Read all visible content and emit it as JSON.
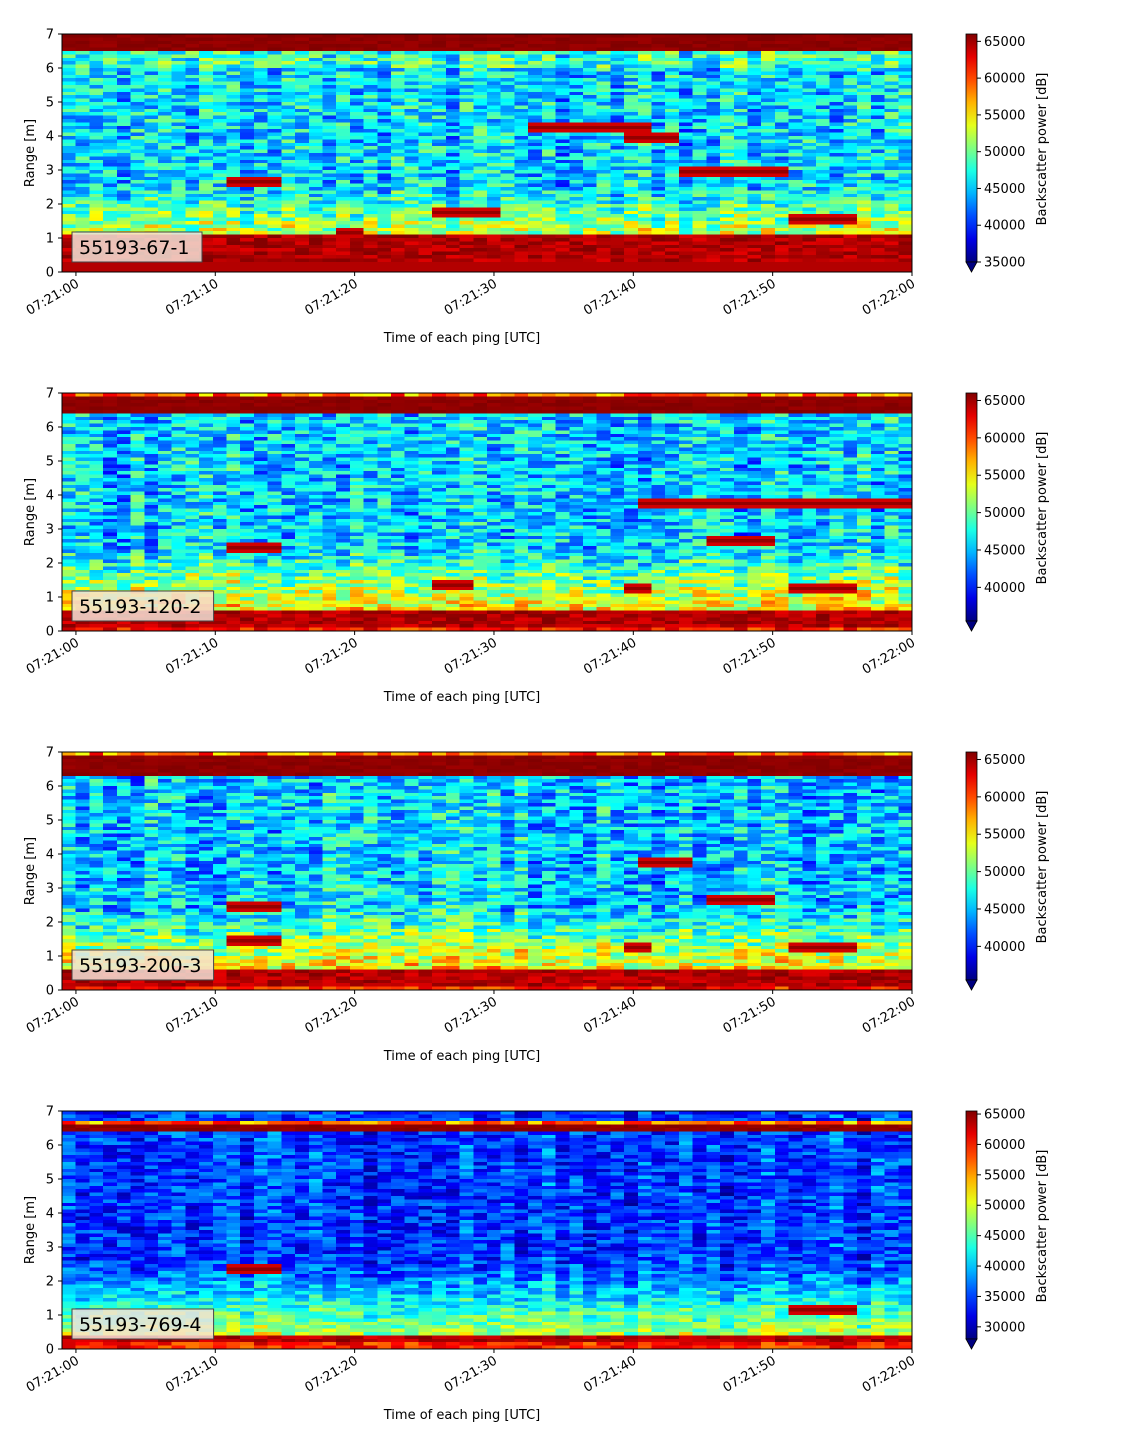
{
  "chart_data": [
    {
      "type": "heatmap",
      "panel_label": "55193-67-1",
      "xlabel": "Time of each ping [UTC]",
      "ylabel": "Range [m]",
      "x_ticks": [
        "07:21:00",
        "07:21:10",
        "07:21:20",
        "07:21:30",
        "07:21:40",
        "07:21:50",
        "07:22:00"
      ],
      "x_range": [
        "07:20:59",
        "07:22:00"
      ],
      "y_ticks": [
        0,
        1,
        2,
        3,
        4,
        5,
        6,
        7
      ],
      "ylim": [
        0,
        7
      ],
      "colorbar": {
        "label": "Backscatter power [dB]",
        "ticks": [
          35000,
          40000,
          45000,
          50000,
          55000,
          60000,
          65000
        ],
        "range": [
          35000,
          66000
        ],
        "extend": "min",
        "colormap": "jet"
      },
      "surface_band_m": [
        6.5,
        7.0
      ],
      "bottom_band_m": [
        0.3,
        1.1
      ],
      "features": [
        {
          "t_sec": [
            11,
            13
          ],
          "range_m": 2.7
        },
        {
          "t_sec": [
            19,
            19
          ],
          "range_m": 1.2
        },
        {
          "t_sec": [
            26,
            29
          ],
          "range_m": 1.8
        },
        {
          "t_sec": [
            33,
            40
          ],
          "range_m": 4.3
        },
        {
          "t_sec": [
            40,
            42
          ],
          "range_m": 4.0
        },
        {
          "t_sec": [
            44,
            50
          ],
          "range_m": 3.0
        },
        {
          "t_sec": [
            52,
            55
          ],
          "range_m": 1.6
        }
      ]
    },
    {
      "type": "heatmap",
      "panel_label": "55193-120-2",
      "xlabel": "Time of each ping [UTC]",
      "ylabel": "Range [m]",
      "x_ticks": [
        "07:21:00",
        "07:21:10",
        "07:21:20",
        "07:21:30",
        "07:21:40",
        "07:21:50",
        "07:22:00"
      ],
      "x_range": [
        "07:20:59",
        "07:22:00"
      ],
      "y_ticks": [
        0,
        1,
        2,
        3,
        4,
        5,
        6,
        7
      ],
      "ylim": [
        0,
        7
      ],
      "colorbar": {
        "label": "Backscatter power [dB]",
        "ticks": [
          40000,
          45000,
          50000,
          55000,
          60000,
          65000
        ],
        "range": [
          35500,
          66000
        ],
        "extend": "min",
        "colormap": "jet"
      },
      "surface_band_m": [
        6.4,
        7.0
      ],
      "bottom_band_m": [
        0.1,
        0.6
      ],
      "features": [
        {
          "t_sec": [
            11,
            13
          ],
          "range_m": 2.5
        },
        {
          "t_sec": [
            26,
            27
          ],
          "range_m": 1.4
        },
        {
          "t_sec": [
            40,
            40
          ],
          "range_m": 1.3
        },
        {
          "t_sec": [
            41,
            43
          ],
          "range_m": 3.8
        },
        {
          "t_sec": [
            43,
            59
          ],
          "range_m": 3.8
        },
        {
          "t_sec": [
            52,
            55
          ],
          "range_m": 1.3
        },
        {
          "t_sec": [
            46,
            49
          ],
          "range_m": 2.7
        }
      ]
    },
    {
      "type": "heatmap",
      "panel_label": "55193-200-3",
      "xlabel": "Time of each ping [UTC]",
      "ylabel": "Range [m]",
      "x_ticks": [
        "07:21:00",
        "07:21:10",
        "07:21:20",
        "07:21:30",
        "07:21:40",
        "07:21:50",
        "07:22:00"
      ],
      "x_range": [
        "07:20:59",
        "07:22:00"
      ],
      "y_ticks": [
        0,
        1,
        2,
        3,
        4,
        5,
        6,
        7
      ],
      "ylim": [
        0,
        7
      ],
      "colorbar": {
        "label": "Backscatter power [dB]",
        "ticks": [
          40000,
          45000,
          50000,
          55000,
          60000,
          65000
        ],
        "range": [
          35500,
          66000
        ],
        "extend": "min",
        "colormap": "jet"
      },
      "surface_band_m": [
        6.3,
        7.0
      ],
      "bottom_band_m": [
        0.1,
        0.6
      ],
      "features": [
        {
          "t_sec": [
            11,
            13
          ],
          "range_m": 2.5
        },
        {
          "t_sec": [
            11,
            13
          ],
          "range_m": 1.5
        },
        {
          "t_sec": [
            40,
            40
          ],
          "range_m": 1.3
        },
        {
          "t_sec": [
            41,
            43
          ],
          "range_m": 3.8
        },
        {
          "t_sec": [
            52,
            55
          ],
          "range_m": 1.3
        },
        {
          "t_sec": [
            46,
            49
          ],
          "range_m": 2.7
        }
      ]
    },
    {
      "type": "heatmap",
      "panel_label": "55193-769-4",
      "xlabel": "Time of each ping [UTC]",
      "ylabel": "Range [m]",
      "x_ticks": [
        "07:21:00",
        "07:21:10",
        "07:21:20",
        "07:21:30",
        "07:21:40",
        "07:21:50",
        "07:22:00"
      ],
      "x_range": [
        "07:20:59",
        "07:22:00"
      ],
      "y_ticks": [
        0,
        1,
        2,
        3,
        4,
        5,
        6,
        7
      ],
      "ylim": [
        0,
        7
      ],
      "colorbar": {
        "label": "Backscatter power [dB]",
        "ticks": [
          30000,
          35000,
          40000,
          45000,
          50000,
          55000,
          60000,
          65000
        ],
        "range": [
          28000,
          65500
        ],
        "extend": "min",
        "colormap": "jet"
      },
      "surface_band_m": [
        6.4,
        6.7
      ],
      "bottom_band_m": [
        0.2,
        0.4
      ],
      "features": [
        {
          "t_sec": [
            11,
            13
          ],
          "range_m": 2.4
        },
        {
          "t_sec": [
            52,
            55
          ],
          "range_m": 1.2
        }
      ]
    }
  ]
}
